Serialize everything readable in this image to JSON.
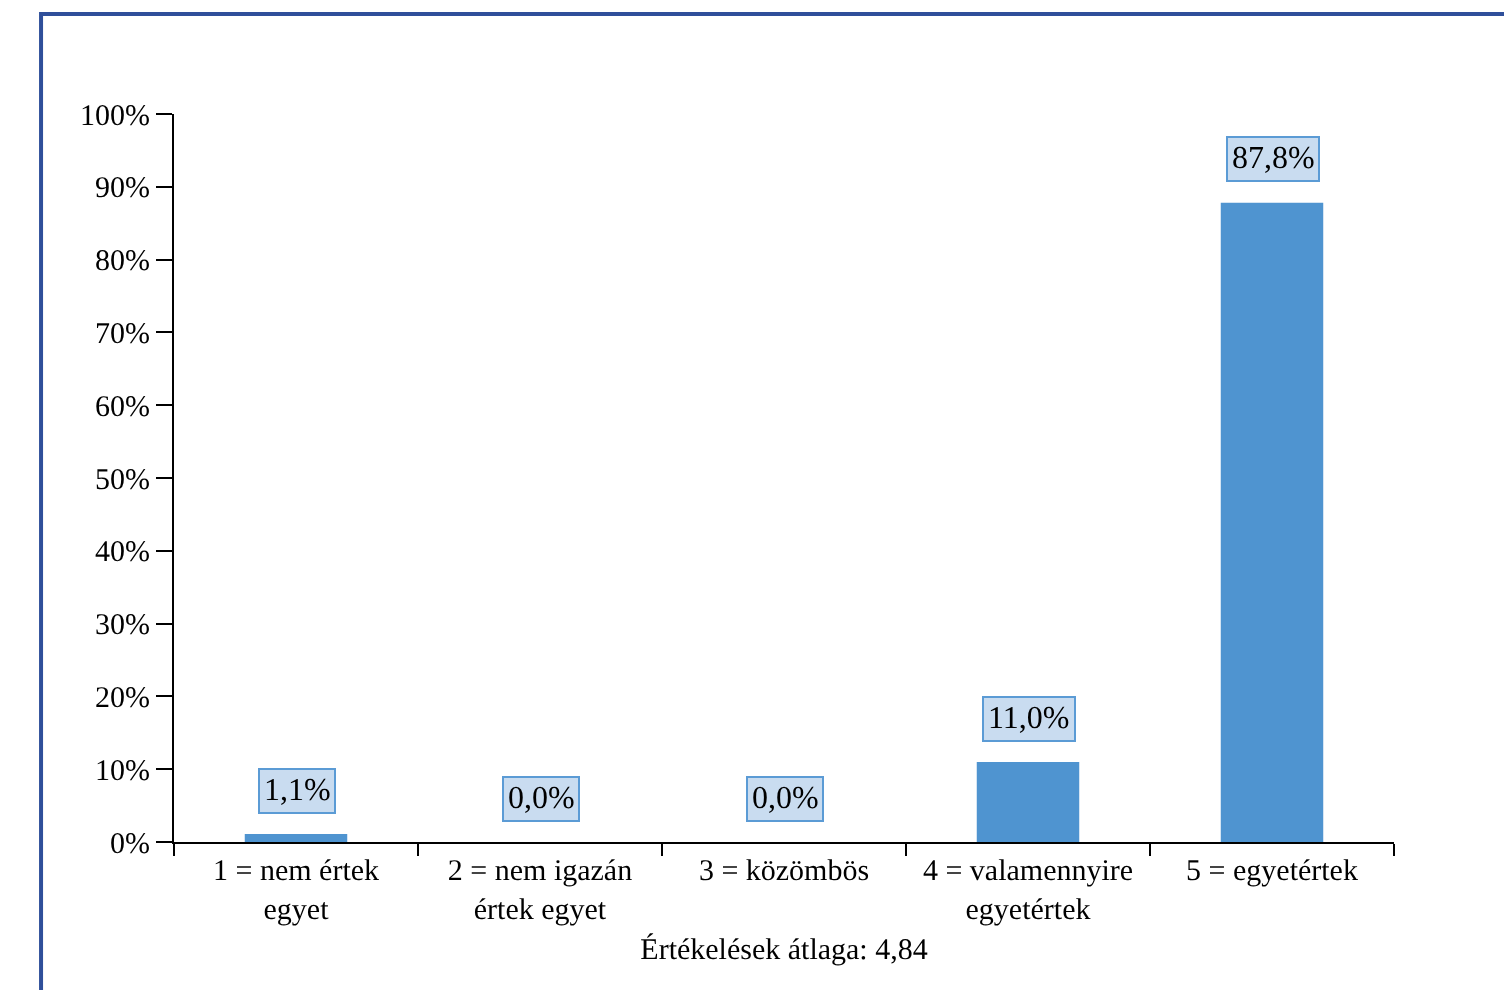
{
  "chart_data": {
    "type": "bar",
    "categories": [
      "1 = nem értek egyet",
      "2 = nem igazán értek egyet",
      "3 = közömbös",
      "4 = valamennyire egyetértek",
      "5 = egyetértek"
    ],
    "values": [
      1.1,
      0.0,
      0.0,
      11.0,
      87.8
    ],
    "color": "#4f94d0",
    "value_labels": [
      "1,1%",
      "0,0%",
      "0,0%",
      "11,0%",
      "87,8%"
    ],
    "xlabel": "Értékelések átlaga: 4,84",
    "ylim": [
      0,
      100
    ],
    "yticks": [
      {
        "value": 0,
        "label": "0%"
      },
      {
        "value": 10,
        "label": "10%"
      },
      {
        "value": 20,
        "label": "20%"
      },
      {
        "value": 30,
        "label": "30%"
      },
      {
        "value": 40,
        "label": "40%"
      },
      {
        "value": 50,
        "label": "50%"
      },
      {
        "value": 60,
        "label": "60%"
      },
      {
        "value": 70,
        "label": "70%"
      },
      {
        "value": 80,
        "label": "80%"
      },
      {
        "value": 90,
        "label": "90%"
      },
      {
        "value": 100,
        "label": "100%"
      }
    ],
    "grid": false
  }
}
